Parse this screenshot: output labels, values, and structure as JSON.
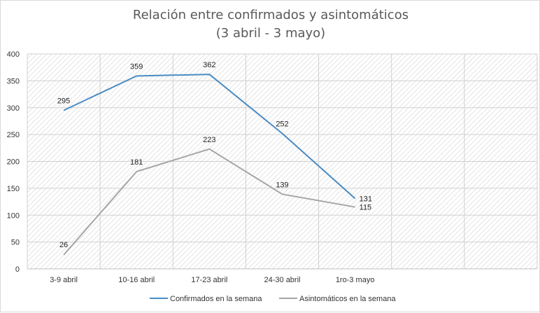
{
  "chart_data": {
    "type": "line",
    "title_line1": "Relación entre confirmados y asintomáticos",
    "title_line2": "(3 abril - 3 mayo)",
    "categories": [
      "3-9 abril",
      "10-16 abril",
      "17-23 abril",
      "24-30 abril",
      "1ro-3 mayo"
    ],
    "category_slots": 7,
    "series": [
      {
        "name": "Confirmados en la semana",
        "values": [
          295,
          359,
          362,
          252,
          131
        ],
        "color": "#4a8bc2"
      },
      {
        "name": "Asintomáticos en la semana",
        "values": [
          26,
          181,
          223,
          139,
          115
        ],
        "color": "#a5a5a5"
      }
    ],
    "yticks": [
      0,
      50,
      100,
      150,
      200,
      250,
      300,
      350,
      400
    ],
    "ylim": [
      0,
      400
    ],
    "grid": true,
    "legend": "bottom",
    "xlabel": "",
    "ylabel": ""
  }
}
